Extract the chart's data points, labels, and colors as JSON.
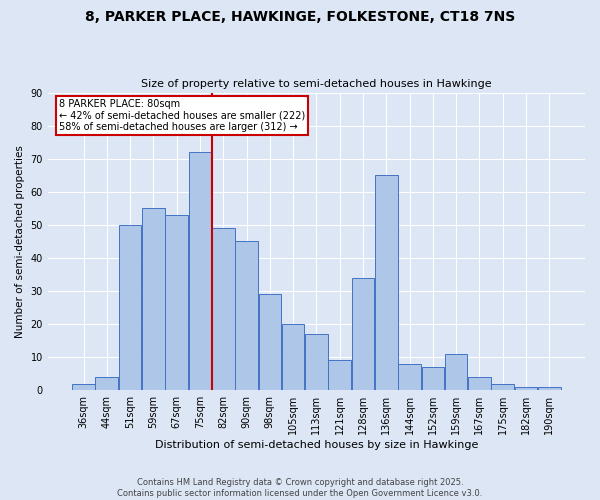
{
  "title": "8, PARKER PLACE, HAWKINGE, FOLKESTONE, CT18 7NS",
  "subtitle": "Size of property relative to semi-detached houses in Hawkinge",
  "xlabel": "Distribution of semi-detached houses by size in Hawkinge",
  "ylabel": "Number of semi-detached properties",
  "bins": [
    36,
    44,
    51,
    59,
    67,
    75,
    82,
    90,
    98,
    105,
    113,
    121,
    128,
    136,
    144,
    152,
    159,
    167,
    175,
    182,
    190
  ],
  "values": [
    2,
    4,
    50,
    55,
    53,
    72,
    49,
    45,
    29,
    20,
    17,
    9,
    34,
    65,
    8,
    7,
    11,
    4,
    2,
    1,
    1
  ],
  "bar_color": "#aec6e8",
  "bar_edge_color": "#4472c4",
  "property_label": "8 PARKER PLACE: 80sqm",
  "annotation_line_color": "#cc0000",
  "annotation_box_color": "#cc0000",
  "annotation_text1": "← 42% of semi-detached houses are smaller (222)",
  "annotation_text2": "58% of semi-detached houses are larger (312) →",
  "background_color": "#dce6f5",
  "grid_color": "#ffffff",
  "footer1": "Contains HM Land Registry data © Crown copyright and database right 2025.",
  "footer2": "Contains public sector information licensed under the Open Government Licence v3.0.",
  "ylim": [
    0,
    90
  ],
  "yticks": [
    0,
    10,
    20,
    30,
    40,
    50,
    60,
    70,
    80,
    90
  ],
  "title_fontsize": 10,
  "subtitle_fontsize": 8,
  "ylabel_fontsize": 7.5,
  "xlabel_fontsize": 8,
  "tick_fontsize": 7,
  "footer_fontsize": 6
}
